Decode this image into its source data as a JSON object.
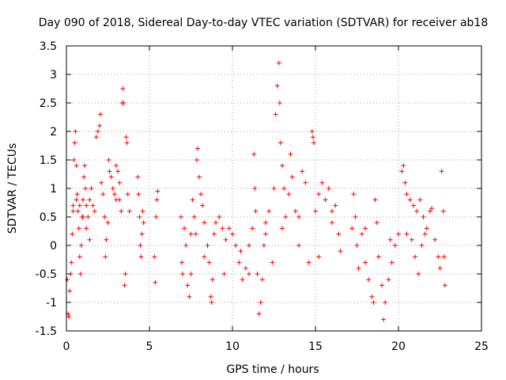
{
  "chart_data": {
    "type": "scatter",
    "title": "Day 090 of 2018, Sidereal Day-to-day VTEC variation (SDTVAR) for receiver ab18",
    "xlabel": "GPS time / hours",
    "ylabel": "SDTVAR / TECUs",
    "xlim": [
      0,
      25
    ],
    "ylim": [
      -1.5,
      3.5
    ],
    "xticks": [
      "0",
      "5",
      "10",
      "15",
      "20",
      "25"
    ],
    "yticks": [
      "-1.5",
      "-1",
      "-0.5",
      "0",
      "0.5",
      "1",
      "1.5",
      "2",
      "2.5",
      "3",
      "3.5"
    ],
    "grid": true,
    "marker": "+",
    "color": "#ff0000",
    "series": [
      {
        "name": "SDTVAR",
        "points": [
          [
            0.05,
            -0.6
          ],
          [
            0.1,
            -1.2
          ],
          [
            0.15,
            -1.25
          ],
          [
            0.2,
            -0.8
          ],
          [
            0.25,
            -0.5
          ],
          [
            0.3,
            -0.3
          ],
          [
            0.35,
            0.2
          ],
          [
            0.4,
            0.7
          ],
          [
            0.45,
            1.5
          ],
          [
            0.5,
            1.8
          ],
          [
            0.55,
            2.0
          ],
          [
            0.6,
            1.4
          ],
          [
            0.65,
            0.9
          ],
          [
            0.7,
            0.6
          ],
          [
            0.75,
            0.3
          ],
          [
            0.8,
            -0.2
          ],
          [
            0.85,
            -0.5
          ],
          [
            0.9,
            0.0
          ],
          [
            0.95,
            0.5
          ],
          [
            1.0,
            0.8
          ],
          [
            1.05,
            1.2
          ],
          [
            1.1,
            1.4
          ],
          [
            1.15,
            1.0
          ],
          [
            1.2,
            0.7
          ],
          [
            1.3,
            0.5
          ],
          [
            1.4,
            0.8
          ],
          [
            1.5,
            1.0
          ],
          [
            1.6,
            0.7
          ],
          [
            1.7,
            0.6
          ],
          [
            1.8,
            1.9
          ],
          [
            1.9,
            2.0
          ],
          [
            2.0,
            2.1
          ],
          [
            2.05,
            2.3
          ],
          [
            2.1,
            1.1
          ],
          [
            2.2,
            0.9
          ],
          [
            2.3,
            0.5
          ],
          [
            2.35,
            -0.2
          ],
          [
            2.4,
            0.1
          ],
          [
            2.5,
            0.4
          ],
          [
            2.55,
            1.5
          ],
          [
            2.6,
            1.3
          ],
          [
            2.7,
            1.2
          ],
          [
            2.8,
            1.0
          ],
          [
            2.9,
            0.9
          ],
          [
            3.0,
            1.4
          ],
          [
            3.1,
            1.3
          ],
          [
            3.2,
            0.8
          ],
          [
            3.3,
            0.6
          ],
          [
            3.35,
            2.5
          ],
          [
            3.4,
            2.75
          ],
          [
            3.45,
            2.5
          ],
          [
            3.5,
            -0.7
          ],
          [
            3.55,
            -0.5
          ],
          [
            3.6,
            1.9
          ],
          [
            3.65,
            1.8
          ],
          [
            3.7,
            0.9
          ],
          [
            3.8,
            0.6
          ],
          [
            4.3,
            1.2
          ],
          [
            4.35,
            0.9
          ],
          [
            4.4,
            0.5
          ],
          [
            4.45,
            0.0
          ],
          [
            4.5,
            -0.2
          ],
          [
            4.55,
            0.2
          ],
          [
            4.6,
            0.6
          ],
          [
            4.65,
            0.4
          ],
          [
            5.3,
            -0.2
          ],
          [
            5.35,
            -0.65
          ],
          [
            5.4,
            0.5
          ],
          [
            5.45,
            0.8
          ],
          [
            5.5,
            0.95
          ],
          [
            6.9,
            0.5
          ],
          [
            6.95,
            -0.3
          ],
          [
            7.0,
            -0.5
          ],
          [
            7.1,
            0.3
          ],
          [
            7.2,
            0.0
          ],
          [
            7.3,
            -0.7
          ],
          [
            7.4,
            -0.9
          ],
          [
            7.5,
            -0.5
          ],
          [
            7.6,
            0.8
          ],
          [
            7.7,
            0.5
          ],
          [
            7.8,
            0.2
          ],
          [
            7.85,
            1.5
          ],
          [
            7.9,
            1.7
          ],
          [
            8.0,
            1.2
          ],
          [
            8.1,
            0.9
          ],
          [
            8.2,
            0.7
          ],
          [
            8.3,
            0.4
          ],
          [
            8.5,
            0.0
          ],
          [
            8.6,
            -0.3
          ],
          [
            8.7,
            -0.9
          ],
          [
            8.75,
            -1.0
          ],
          [
            8.8,
            -0.6
          ],
          [
            8.9,
            0.2
          ],
          [
            9.0,
            0.4
          ],
          [
            9.2,
            0.5
          ],
          [
            9.4,
            0.3
          ],
          [
            9.6,
            0.1
          ],
          [
            9.8,
            0.3
          ],
          [
            10.0,
            0.2
          ],
          [
            10.2,
            0.0
          ],
          [
            10.4,
            -0.3
          ],
          [
            10.6,
            -0.6
          ],
          [
            10.8,
            -0.4
          ],
          [
            11.0,
            0.0
          ],
          [
            11.2,
            0.3
          ],
          [
            11.3,
            1.6
          ],
          [
            11.35,
            1.0
          ],
          [
            11.4,
            0.6
          ],
          [
            11.5,
            -0.5
          ],
          [
            11.6,
            -1.2
          ],
          [
            11.7,
            -1.0
          ],
          [
            11.8,
            -0.6
          ],
          [
            11.9,
            0.0
          ],
          [
            12.0,
            0.4
          ],
          [
            12.2,
            0.6
          ],
          [
            12.4,
            -0.3
          ],
          [
            12.5,
            1.0
          ],
          [
            12.6,
            2.3
          ],
          [
            12.7,
            2.8
          ],
          [
            12.8,
            3.2
          ],
          [
            12.85,
            2.5
          ],
          [
            12.9,
            1.8
          ],
          [
            13.0,
            1.4
          ],
          [
            13.1,
            1.0
          ],
          [
            13.2,
            0.5
          ],
          [
            13.4,
            0.9
          ],
          [
            13.5,
            1.6
          ],
          [
            13.6,
            1.2
          ],
          [
            13.8,
            0.6
          ],
          [
            14.0,
            0.0
          ],
          [
            14.2,
            1.3
          ],
          [
            14.4,
            1.1
          ],
          [
            14.6,
            -0.3
          ],
          [
            14.8,
            2.0
          ],
          [
            14.85,
            1.9
          ],
          [
            14.9,
            1.8
          ],
          [
            15.0,
            0.6
          ],
          [
            15.2,
            0.9
          ],
          [
            15.4,
            1.1
          ],
          [
            15.6,
            0.8
          ],
          [
            15.8,
            1.0
          ],
          [
            16.0,
            0.4
          ],
          [
            16.2,
            0.7
          ],
          [
            16.4,
            0.2
          ],
          [
            16.5,
            -0.1
          ],
          [
            17.2,
            0.3
          ],
          [
            17.3,
            0.9
          ],
          [
            17.4,
            0.5
          ],
          [
            17.5,
            0.0
          ],
          [
            17.6,
            -0.4
          ],
          [
            17.8,
            0.2
          ],
          [
            18.0,
            -0.3
          ],
          [
            18.2,
            -0.6
          ],
          [
            18.4,
            -0.9
          ],
          [
            18.5,
            -1.0
          ],
          [
            18.6,
            0.8
          ],
          [
            18.7,
            0.4
          ],
          [
            18.8,
            -0.2
          ],
          [
            19.0,
            -0.7
          ],
          [
            19.1,
            -1.3
          ],
          [
            19.2,
            -1.0
          ],
          [
            19.4,
            -0.6
          ],
          [
            19.6,
            -0.3
          ],
          [
            19.8,
            0.0
          ],
          [
            20.0,
            0.2
          ],
          [
            20.2,
            1.3
          ],
          [
            20.3,
            1.4
          ],
          [
            20.4,
            1.1
          ],
          [
            20.5,
            0.9
          ],
          [
            20.7,
            0.8
          ],
          [
            20.9,
            0.7
          ],
          [
            21.1,
            0.6
          ],
          [
            21.3,
            0.8
          ],
          [
            21.5,
            0.5
          ],
          [
            21.7,
            0.3
          ],
          [
            21.9,
            0.6
          ],
          [
            22.0,
            0.65
          ],
          [
            22.2,
            0.1
          ],
          [
            22.4,
            -0.2
          ],
          [
            22.5,
            -0.4
          ],
          [
            22.6,
            1.3
          ],
          [
            22.7,
            0.6
          ],
          [
            22.75,
            -0.2
          ],
          [
            22.8,
            -0.7
          ],
          [
            20.5,
            0.2
          ],
          [
            20.8,
            0.1
          ],
          [
            21.0,
            -0.2
          ],
          [
            21.2,
            -0.5
          ],
          [
            21.4,
            0.0
          ],
          [
            21.6,
            0.2
          ],
          [
            0.4,
            0.6
          ],
          [
            0.6,
            0.8
          ],
          [
            0.8,
            0.7
          ],
          [
            1.0,
            0.5
          ],
          [
            1.2,
            0.3
          ],
          [
            1.4,
            0.1
          ],
          [
            3.0,
            0.8
          ],
          [
            3.2,
            1.1
          ],
          [
            7.5,
            0.2
          ],
          [
            8.3,
            -0.2
          ],
          [
            9.5,
            -0.5
          ],
          [
            10.5,
            -0.1
          ],
          [
            11.0,
            -0.5
          ],
          [
            12.0,
            0.2
          ],
          [
            13.0,
            0.3
          ],
          [
            14.0,
            0.5
          ],
          [
            15.2,
            -0.2
          ],
          [
            16.0,
            0.6
          ],
          [
            18.0,
            0.3
          ],
          [
            19.5,
            0.1
          ]
        ]
      }
    ]
  }
}
